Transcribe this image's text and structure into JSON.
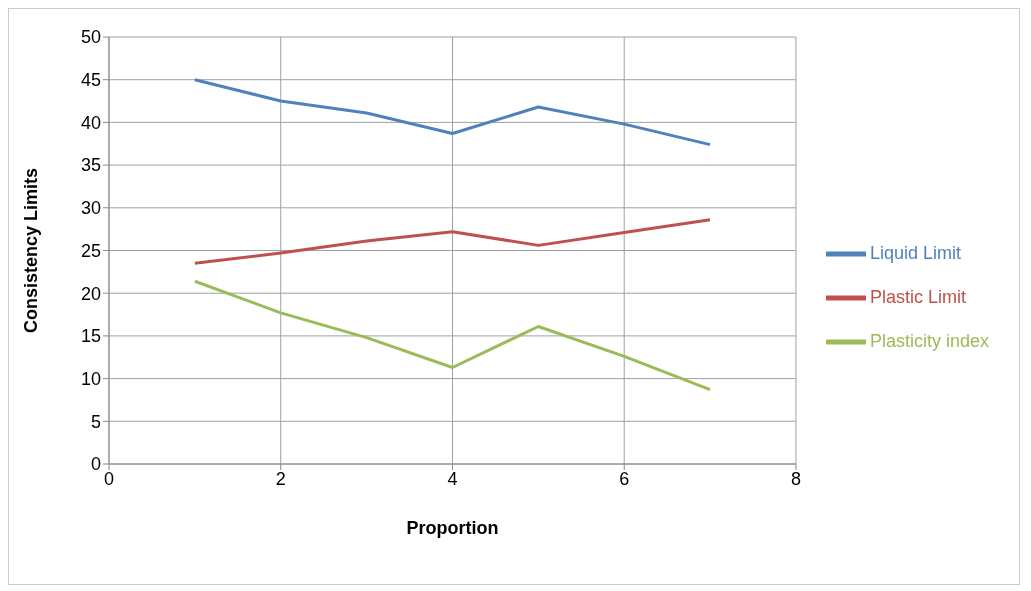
{
  "chart_data": {
    "type": "line",
    "xlabel": "Proportion",
    "ylabel": "Consistency Limits",
    "x": [
      1,
      2,
      3,
      4,
      5,
      6,
      7
    ],
    "series": [
      {
        "name": "Liquid Limit",
        "color": "#4f81bd",
        "values": [
          45.0,
          42.5,
          41.1,
          38.7,
          41.8,
          39.8,
          37.4
        ]
      },
      {
        "name": "Plastic Limit",
        "color": "#c0504d",
        "values": [
          23.5,
          24.7,
          26.1,
          27.2,
          25.6,
          27.1,
          28.6
        ]
      },
      {
        "name": "Plasticity index",
        "color": "#9bbb59",
        "values": [
          21.4,
          17.7,
          14.8,
          11.3,
          16.1,
          12.6,
          8.7
        ]
      }
    ],
    "xlim": [
      0,
      8
    ],
    "xticks": [
      0,
      2,
      4,
      6,
      8
    ],
    "ylim": [
      0,
      50
    ],
    "yticks": [
      0,
      5,
      10,
      15,
      20,
      25,
      30,
      35,
      40,
      45,
      50
    ],
    "grid": true,
    "legend": "right",
    "marker": "none",
    "line_style": "solid"
  }
}
